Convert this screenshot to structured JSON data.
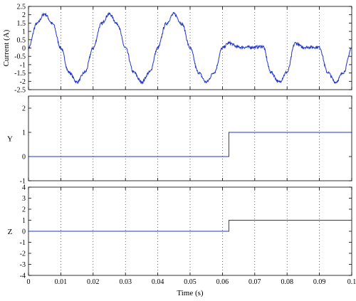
{
  "chart_data": [
    {
      "type": "line",
      "ylabel": "Current (A)",
      "xlabel": "",
      "xlim": [
        0,
        0.1
      ],
      "ylim": [
        -2.5,
        2.5
      ],
      "grid": "vertical dotted",
      "xticks": [
        "",
        "",
        "",
        "",
        "",
        "",
        "",
        "",
        "",
        "",
        ""
      ],
      "yticks": [
        "2.5",
        "2",
        "1.5",
        "1",
        "0.5",
        "0",
        "-0.5",
        "-1",
        "-1.5",
        "-2",
        "-2.5"
      ],
      "ytick_values": [
        2.5,
        2,
        1.5,
        1,
        0.5,
        0,
        -0.5,
        -1,
        -1.5,
        -2,
        -2.5
      ],
      "series": [
        {
          "color": "#1f35c9",
          "x": [
            0,
            0.0025,
            0.005,
            0.0075,
            0.01,
            0.0125,
            0.015,
            0.0175,
            0.02,
            0.0225,
            0.025,
            0.0275,
            0.03,
            0.0325,
            0.035,
            0.0375,
            0.04,
            0.0425,
            0.045,
            0.0475,
            0.05,
            0.0525,
            0.055,
            0.0575,
            0.06,
            0.062,
            0.065,
            0.0675,
            0.07,
            0.0725,
            0.075,
            0.0775,
            0.08,
            0.0825,
            0.085,
            0.0875,
            0.09,
            0.0925,
            0.095,
            0.0975,
            0.1
          ],
          "y": [
            0,
            1.45,
            2.05,
            1.45,
            0,
            -1.45,
            -2.05,
            -1.45,
            0,
            1.45,
            2.05,
            1.45,
            0,
            -1.45,
            -2.05,
            -1.45,
            0,
            1.45,
            2.05,
            1.45,
            0,
            -1.45,
            -2.05,
            -1.45,
            0,
            0.3,
            0.05,
            0.05,
            0.05,
            0.1,
            -1.45,
            -2.05,
            -1.45,
            0.3,
            0.05,
            0.05,
            0.05,
            -1.45,
            -2.05,
            -1.45,
            0
          ]
        }
      ]
    },
    {
      "type": "line",
      "ylabel": "Y",
      "xlabel": "",
      "xlim": [
        0,
        0.1
      ],
      "ylim": [
        -1,
        2.5
      ],
      "grid": "vertical dotted",
      "xticks": [
        "",
        "",
        "",
        "",
        "",
        "",
        "",
        "",
        "",
        "",
        ""
      ],
      "yticks": [
        "2",
        "1",
        "0",
        "-1"
      ],
      "ytick_values": [
        2,
        1,
        0,
        -1
      ],
      "series": [
        {
          "color": "#1f35c9",
          "x": [
            0,
            0.062,
            0.062,
            0.1
          ],
          "y": [
            0,
            0,
            1,
            1
          ]
        }
      ]
    },
    {
      "type": "line",
      "ylabel": "Z",
      "xlabel": "Time (s)",
      "xlim": [
        0,
        0.1
      ],
      "ylim": [
        -4,
        4
      ],
      "grid": "vertical dotted",
      "xticks": [
        "0",
        "0.01",
        "0.02",
        "0.03",
        "0.04",
        "0.05",
        "0.06",
        "0.07",
        "0.08",
        "0.09",
        "0.1"
      ],
      "yticks": [
        "4",
        "3",
        "2",
        "1",
        "0",
        "-1",
        "-2",
        "-3",
        "-4"
      ],
      "ytick_values": [
        4,
        3,
        2,
        1,
        0,
        -1,
        -2,
        -3,
        -4
      ],
      "series": [
        {
          "color": "#1f35c9",
          "x": [
            0,
            0.062,
            0.062,
            0.1
          ],
          "y": [
            0,
            0,
            1,
            1
          ]
        }
      ]
    }
  ]
}
